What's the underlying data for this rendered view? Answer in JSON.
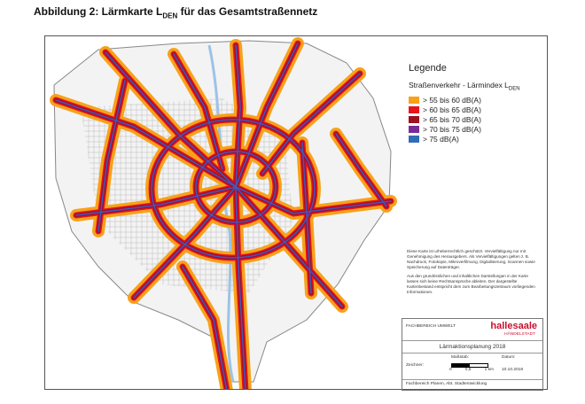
{
  "header": {
    "title": "Abbildung 2: Lärmkarte L",
    "title_subscript": "DEN",
    "title_suffix": " für das Gesamtstraßennetz"
  },
  "legend": {
    "heading": "Legende",
    "subtitle": "Straßenverkehr - Lärmindex L",
    "subtitle_subscript": "DEN",
    "items": [
      {
        "label": "> 55 bis 60 dB(A)",
        "color": "#f6a21a"
      },
      {
        "label": "> 60 bis 65 dB(A)",
        "color": "#e8141b"
      },
      {
        "label": "> 65 bis 70 dB(A)",
        "color": "#9e1020"
      },
      {
        "label": "> 70 bis 75 dB(A)",
        "color": "#7a2a96"
      },
      {
        "label": "> 75 dB(A)",
        "color": "#2f6db5"
      }
    ]
  },
  "notes": {
    "paragraphs": [
      "Diese Karte ist urheberrechtlich geschützt. Vervielfältigung nur mit Genehmigung des Herausgebers. Als Vervielfältigungen gelten z. B. Nachdruck, Fotokopie, Mikroverfilmung, Digitalisierung, Scannen sowie Speicherung auf Datenträger.",
      "Aus den grundrisslichen und inhaltlichen Darstellungen in der Karte lassen sich keine Rechtsansprüche ableiten. Der dargestellte Kartenbestand entspricht dem zum Bearbeitungszeitraum vorliegenden Informationen."
    ]
  },
  "title_block": {
    "department": "FACHBEREICH UMWELT",
    "logo": "hallesaale",
    "logo_tagline": "HÄNDELSTADT",
    "project": "Lärmaktionsplanung 2018",
    "scale_label": "Maßstab:",
    "date_label": "Datum:",
    "date": "10.10.2018",
    "drawn_label": "Zeichner:",
    "scale_ticks": [
      "0",
      "0,5",
      "1 km"
    ],
    "footer": "Fachbereich Planen, Abt. Stadtentwicklung"
  }
}
